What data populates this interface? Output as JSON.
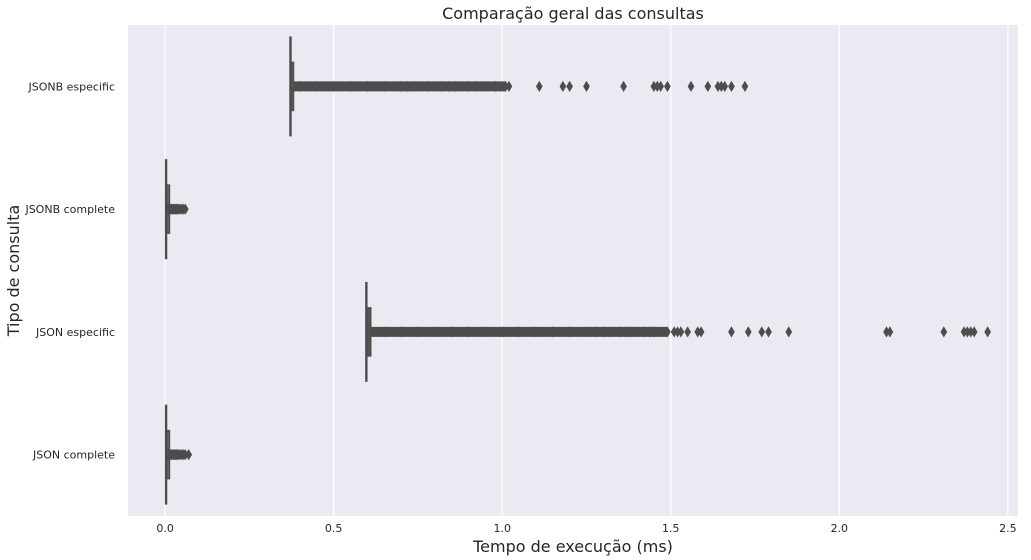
{
  "chart_data": {
    "type": "boxplot",
    "orientation": "horizontal",
    "title": "Comparação geral das consultas",
    "xlabel": "Tempo de execução (ms)",
    "ylabel": "Tipo de consulta",
    "xlim": [
      -0.11,
      2.53
    ],
    "xticks": [
      0.0,
      0.5,
      1.0,
      1.5,
      2.0,
      2.5
    ],
    "xtick_labels": [
      "0.0",
      "0.5",
      "1.0",
      "1.5",
      "2.0",
      "2.5"
    ],
    "grid": true,
    "categories": [
      "JSONB especific",
      "JSONB complete",
      "JSON especific",
      "JSON complete"
    ],
    "boxes": [
      {
        "label": "JSONB especific",
        "whisker_low": 0.372,
        "q1": 0.372,
        "median": 0.375,
        "q3": 0.378,
        "whisker_high": 0.378,
        "outliers": [
          0.4,
          0.45,
          0.5,
          0.55,
          0.6,
          0.65,
          0.7,
          0.72,
          0.74,
          0.76,
          0.78,
          0.8,
          0.82,
          0.84,
          0.86,
          0.88,
          0.9,
          0.92,
          0.95,
          0.98,
          1.01,
          1.02,
          1.11,
          1.18,
          1.2,
          1.25,
          1.36,
          1.45,
          1.46,
          1.47,
          1.49,
          1.56,
          1.61,
          1.64,
          1.65,
          1.66,
          1.68,
          1.72
        ]
      },
      {
        "label": "JSONB complete",
        "whisker_low": 0.003,
        "q1": 0.004,
        "median": 0.005,
        "q3": 0.006,
        "whisker_high": 0.007,
        "outliers": [
          0.01,
          0.015,
          0.02,
          0.025,
          0.03,
          0.035,
          0.04,
          0.045,
          0.05,
          0.055,
          0.06
        ]
      },
      {
        "label": "JSON especific",
        "whisker_low": 0.597,
        "q1": 0.6,
        "median": 0.605,
        "q3": 0.61,
        "whisker_high": 0.612,
        "outliers": [
          0.65,
          0.7,
          0.75,
          0.8,
          0.85,
          0.9,
          0.95,
          1.0,
          1.05,
          1.1,
          1.15,
          1.2,
          1.25,
          1.28,
          1.3,
          1.32,
          1.35,
          1.37,
          1.38,
          1.4,
          1.42,
          1.44,
          1.45,
          1.49,
          1.51,
          1.52,
          1.53,
          1.55,
          1.58,
          1.59,
          1.68,
          1.73,
          1.77,
          1.79,
          1.85,
          2.14,
          2.15,
          2.31,
          2.37,
          2.38,
          2.39,
          2.4,
          2.44
        ]
      },
      {
        "label": "JSON complete",
        "whisker_low": 0.003,
        "q1": 0.004,
        "median": 0.005,
        "q3": 0.006,
        "whisker_high": 0.007,
        "outliers": [
          0.01,
          0.015,
          0.02,
          0.025,
          0.03,
          0.035,
          0.04,
          0.045,
          0.05,
          0.055,
          0.06,
          0.07
        ]
      }
    ],
    "colors": {
      "background": "#eaeaf2",
      "grid": "#ffffff",
      "box_fill": "#6d6d6d",
      "line": "#4d4d4d",
      "text": "#262626"
    }
  }
}
